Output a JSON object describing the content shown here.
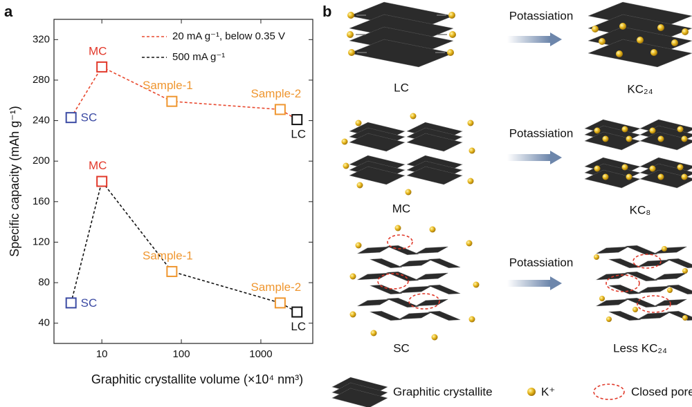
{
  "panel_labels": [
    "a",
    "b"
  ],
  "chart_data": {
    "type": "line",
    "x_label": "Graphitic crystallite volume (×10⁴ nm³)",
    "y_label": "Specific capacity (mAh g⁻¹)",
    "x": [
      4.1,
      10,
      76,
      1750,
      2850
    ],
    "point_labels": [
      "SC",
      "MC",
      "Sample-1",
      "Sample-2",
      "LC"
    ],
    "point_colors": [
      "#3b4aa3",
      "#e2382a",
      "#ef962f",
      "#ef962f",
      "#111111"
    ],
    "series": [
      {
        "name": "20 mA g⁻¹, below 0.35 V",
        "color": "#e8482e",
        "values": [
          243,
          293,
          259,
          251,
          241
        ]
      },
      {
        "name": "500 mA g⁻¹",
        "color": "#111111",
        "values": [
          60,
          180,
          91,
          60,
          51
        ]
      }
    ],
    "xlim": [
      2.5,
      4500
    ],
    "xticks": [
      10,
      100,
      1000
    ],
    "x_log": true,
    "ylim": [
      20,
      340
    ],
    "yticks": [
      40,
      80,
      120,
      160,
      200,
      240,
      280,
      320
    ],
    "grid": false,
    "legend": "upper right"
  },
  "diagram": {
    "rows": [
      {
        "before": "LC",
        "process": "Potassiation",
        "after": "KC₂₄"
      },
      {
        "before": "MC",
        "process": "Potassiation",
        "after": "KC₈"
      },
      {
        "before": "SC",
        "process": "Potassiation",
        "after": "Less KC₂₄"
      }
    ],
    "legend": [
      "Graphitic crystallite",
      "K⁺",
      "Closed pore"
    ]
  }
}
